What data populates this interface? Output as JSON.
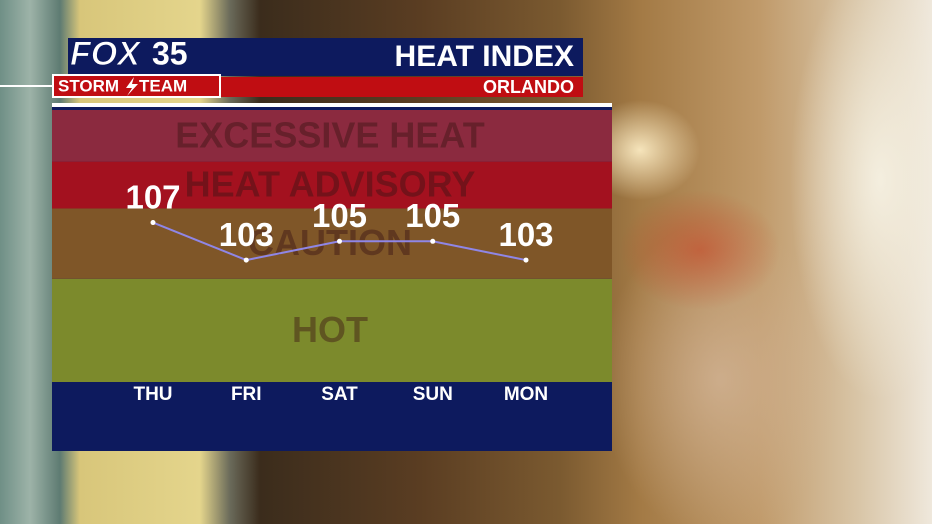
{
  "header": {
    "brand": "FOX",
    "channel": "35",
    "team_left": "STORM",
    "team_right": "TEAM"
  },
  "chart_data": {
    "type": "line",
    "title": "HEAT INDEX",
    "subtitle": "ORLANDO",
    "categories": [
      "THU",
      "FRI",
      "SAT",
      "SUN",
      "MON"
    ],
    "values": [
      107,
      103,
      105,
      105,
      103
    ],
    "color": "#8f86e6",
    "ylim": [
      90,
      119
    ],
    "bands": [
      {
        "label": "HOT",
        "from": 90,
        "to": 101,
        "color": "#7c8a2c"
      },
      {
        "label": "CAUTION",
        "from": 101,
        "to": 108.5,
        "color": "#7f5628"
      },
      {
        "label": "HEAT ADVISORY",
        "from": 108.5,
        "to": 113.5,
        "color": "#a3111f"
      },
      {
        "label": "EXCESSIVE HEAT",
        "from": 113.5,
        "to": 119,
        "color": "#8b2a3f"
      }
    ]
  }
}
